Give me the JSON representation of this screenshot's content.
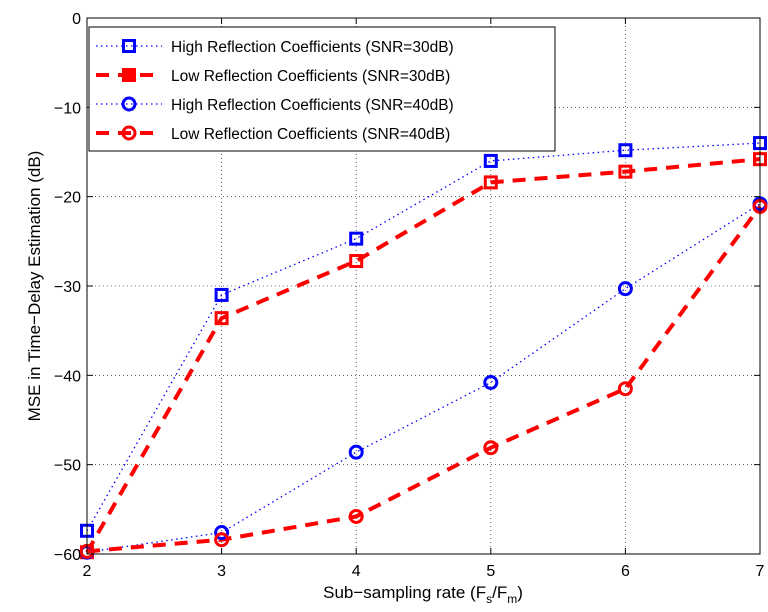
{
  "chart_data": {
    "type": "line",
    "x": [
      2,
      3,
      4,
      5,
      6,
      7
    ],
    "xlim": [
      2,
      7
    ],
    "ylim": [
      -60,
      0
    ],
    "xticks": [
      2,
      3,
      4,
      5,
      6,
      7
    ],
    "yticks": [
      0,
      -10,
      -20,
      -30,
      -40,
      -50,
      -60
    ],
    "grid": true,
    "legend_position": "top-left",
    "xlabel_parts": {
      "main": "Sub−sampling rate (F",
      "sub1": "s",
      "mid": "/F",
      "sub2": "m",
      "end": ")"
    },
    "ylabel": "MSE in Time−Delay Estimation (dB)",
    "series": [
      {
        "name": "High Reflection Coefficients (SNR=30dB)",
        "color": "#0000ff",
        "line": "dotted",
        "marker": "square",
        "values": [
          -57.4,
          -31.0,
          -24.7,
          -16.0,
          -14.8,
          -14.0
        ]
      },
      {
        "name": "Low Reflection Coefficients (SNR=30dB)",
        "color": "#ff0000",
        "line": "dashed",
        "marker": "square",
        "values": [
          -59.8,
          -33.6,
          -27.2,
          -18.4,
          -17.2,
          -15.8
        ]
      },
      {
        "name": "High Reflection Coefficients (SNR=40dB)",
        "color": "#0000ff",
        "line": "dotted",
        "marker": "circle",
        "values": [
          -59.8,
          -57.6,
          -48.6,
          -40.8,
          -30.3,
          -20.8
        ]
      },
      {
        "name": "Low Reflection Coefficients (SNR=40dB)",
        "color": "#ff0000",
        "line": "dashed",
        "marker": "circle",
        "values": [
          -59.7,
          -58.4,
          -55.8,
          -48.1,
          -41.5,
          -21.1
        ]
      }
    ]
  }
}
